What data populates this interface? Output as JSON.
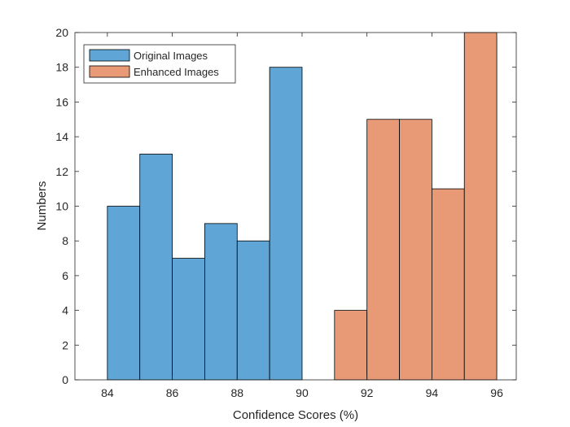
{
  "chart_data": {
    "type": "bar",
    "title": "",
    "xlabel": "Confidence Scores (%)",
    "ylabel": "Numbers",
    "xlim": [
      83,
      96.6
    ],
    "ylim": [
      0,
      20
    ],
    "xticks": [
      84,
      86,
      88,
      90,
      92,
      94,
      96
    ],
    "yticks": [
      0,
      2,
      4,
      6,
      8,
      10,
      12,
      14,
      16,
      18,
      20
    ],
    "grid": false,
    "legend_position": "top-left",
    "series": [
      {
        "name": "Original Images",
        "color": "#5fa6d6",
        "bins": [
          {
            "x0": 84,
            "x1": 85,
            "value": 10
          },
          {
            "x0": 85,
            "x1": 86,
            "value": 13
          },
          {
            "x0": 86,
            "x1": 87,
            "value": 7
          },
          {
            "x0": 87,
            "x1": 88,
            "value": 9
          },
          {
            "x0": 88,
            "x1": 89,
            "value": 8
          },
          {
            "x0": 89,
            "x1": 90,
            "value": 18
          }
        ]
      },
      {
        "name": "Enhanced Images",
        "color": "#e89a77",
        "bins": [
          {
            "x0": 91,
            "x1": 92,
            "value": 4
          },
          {
            "x0": 92,
            "x1": 93,
            "value": 15
          },
          {
            "x0": 93,
            "x1": 94,
            "value": 15
          },
          {
            "x0": 94,
            "x1": 95,
            "value": 11
          },
          {
            "x0": 95,
            "x1": 96,
            "value": 20
          }
        ]
      }
    ]
  }
}
